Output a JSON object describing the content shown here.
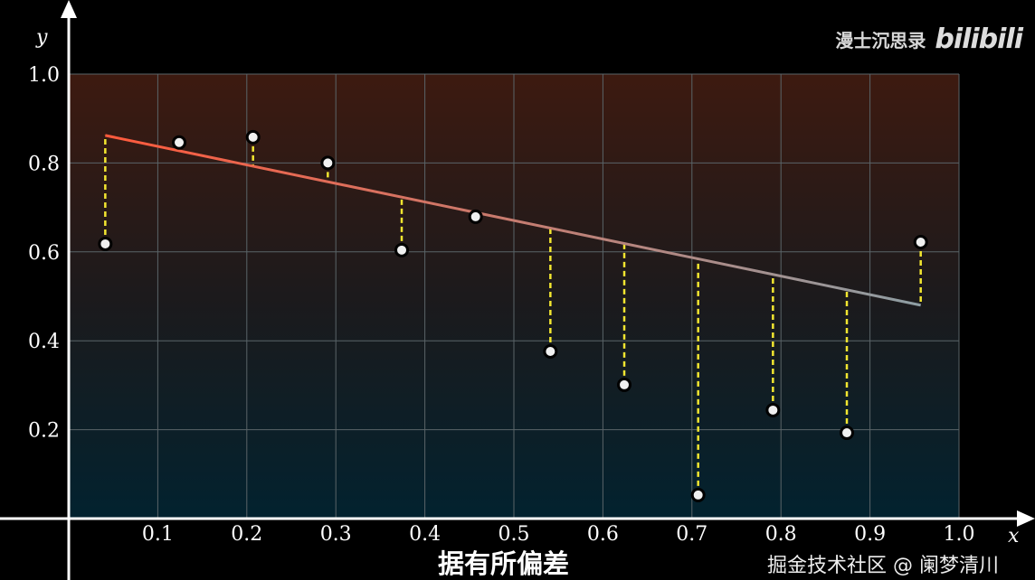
{
  "chart_data": {
    "type": "scatter",
    "xlabel": "x",
    "ylabel": "y",
    "xlim": [
      0,
      1.0
    ],
    "ylim": [
      0,
      1.0
    ],
    "grid": true,
    "xticks": [
      "0.1",
      "0.2",
      "0.3",
      "0.4",
      "0.5",
      "0.6",
      "0.7",
      "0.8",
      "0.9",
      "1.0"
    ],
    "yticks": [
      "0.2",
      "0.4",
      "0.6",
      "0.8",
      "1.0"
    ],
    "points": [
      {
        "x": 0.041,
        "y": 0.618
      },
      {
        "x": 0.124,
        "y": 0.846
      },
      {
        "x": 0.207,
        "y": 0.858
      },
      {
        "x": 0.291,
        "y": 0.8
      },
      {
        "x": 0.374,
        "y": 0.604
      },
      {
        "x": 0.457,
        "y": 0.679
      },
      {
        "x": 0.541,
        "y": 0.376
      },
      {
        "x": 0.624,
        "y": 0.301
      },
      {
        "x": 0.707,
        "y": 0.053
      },
      {
        "x": 0.791,
        "y": 0.244
      },
      {
        "x": 0.874,
        "y": 0.193
      },
      {
        "x": 0.957,
        "y": 0.622
      }
    ],
    "fit_line": {
      "x": [
        0.041,
        0.957
      ],
      "y": [
        0.862,
        0.48
      ]
    },
    "residuals": "dashed yellow",
    "colors": {
      "line_start": "#ff5a3c",
      "line_end": "#8e9ea4",
      "residual": "#f2e630",
      "point": "#f0f0f0",
      "bg_top": "#3d1a10",
      "bg_bottom": "#02222f"
    }
  },
  "watermark": {
    "channel": "漫士沉思录",
    "logo": "bilibili"
  },
  "subtitle": "据有所偏差",
  "credit": "掘金技术社区 @ 阑梦清川"
}
